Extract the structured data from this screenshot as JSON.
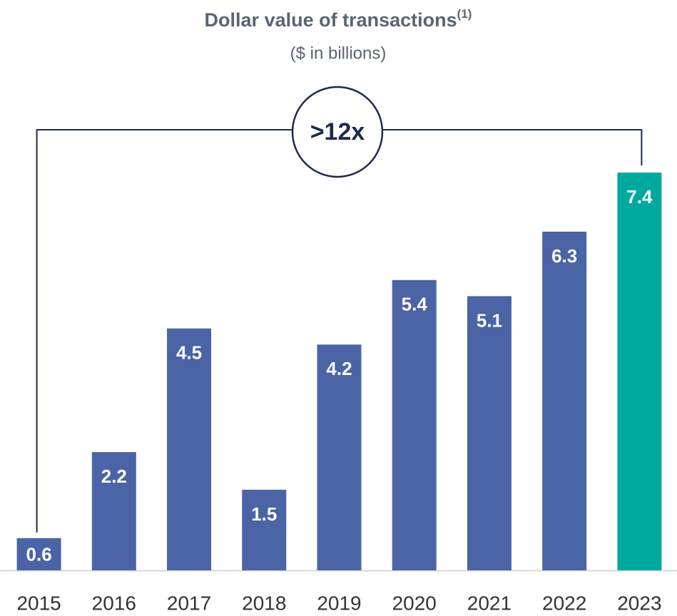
{
  "chart_data": {
    "type": "bar",
    "title": "Dollar value of transactions",
    "title_superscript": "(1)",
    "subtitle": "($ in billions)",
    "annotation": ">12x",
    "categories": [
      "2015",
      "2016",
      "2017",
      "2018",
      "2019",
      "2020",
      "2021",
      "2022",
      "2023"
    ],
    "values": [
      0.6,
      2.2,
      4.5,
      1.5,
      4.2,
      5.4,
      5.1,
      6.3,
      7.4
    ],
    "colors": [
      "#4a64a5",
      "#4a64a5",
      "#4a64a5",
      "#4a64a5",
      "#4a64a5",
      "#4a64a5",
      "#4a64a5",
      "#4a64a5",
      "#00a99d"
    ],
    "grid": false
  }
}
